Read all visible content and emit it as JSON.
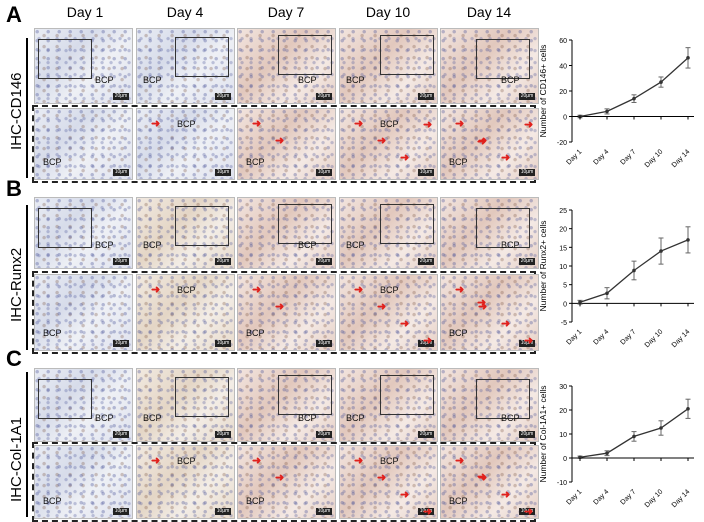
{
  "figure": {
    "panels": [
      {
        "letter": "A",
        "marker": "IHC-CD146",
        "micro_label": "BCP"
      },
      {
        "letter": "B",
        "marker": "IHC-Runx2",
        "micro_label": "BCP"
      },
      {
        "letter": "C",
        "marker": "IHC-Col-1A1",
        "micro_label": "BCP"
      }
    ],
    "day_headers": [
      "Day 1",
      "Day 4",
      "Day 7",
      "Day 10",
      "Day 14"
    ],
    "scale_bar_top": "20μm",
    "scale_bar_bottom": "10μm"
  },
  "colors": {
    "line": "#333333",
    "arrow": "#e0201c"
  },
  "chart_data": [
    {
      "type": "line",
      "title": "",
      "categories": [
        "Day 1",
        "Day 4",
        "Day 7",
        "Day 10",
        "Day 14"
      ],
      "values": [
        0,
        4,
        14,
        27,
        46
      ],
      "errors": [
        1,
        2,
        3,
        4,
        8
      ],
      "ylabel": "Number of CD146+ cells",
      "xlabel": "",
      "ylim": [
        -20,
        60
      ],
      "yticks": [
        -20,
        0,
        20,
        40,
        60
      ]
    },
    {
      "type": "line",
      "title": "",
      "categories": [
        "Day 1",
        "Day 4",
        "Day 7",
        "Day 10",
        "Day 14"
      ],
      "values": [
        0.3,
        2.7,
        8.8,
        14,
        17
      ],
      "errors": [
        0.5,
        1.5,
        2.5,
        3.5,
        3.5
      ],
      "ylabel": "Number of Runx2+ cells",
      "xlabel": "",
      "ylim": [
        -5,
        25
      ],
      "yticks": [
        -5,
        0,
        5,
        10,
        15,
        20,
        25
      ]
    },
    {
      "type": "line",
      "title": "",
      "categories": [
        "Day 1",
        "Day 4",
        "Day 7",
        "Day 10",
        "Day 14"
      ],
      "values": [
        0.3,
        2,
        9,
        12.5,
        20.5
      ],
      "errors": [
        0.5,
        1,
        2,
        3,
        4
      ],
      "ylabel": "Number of Col-1A1+ cells",
      "xlabel": "",
      "ylim": [
        -10,
        30
      ],
      "yticks": [
        -10,
        0,
        10,
        20,
        30
      ]
    }
  ]
}
